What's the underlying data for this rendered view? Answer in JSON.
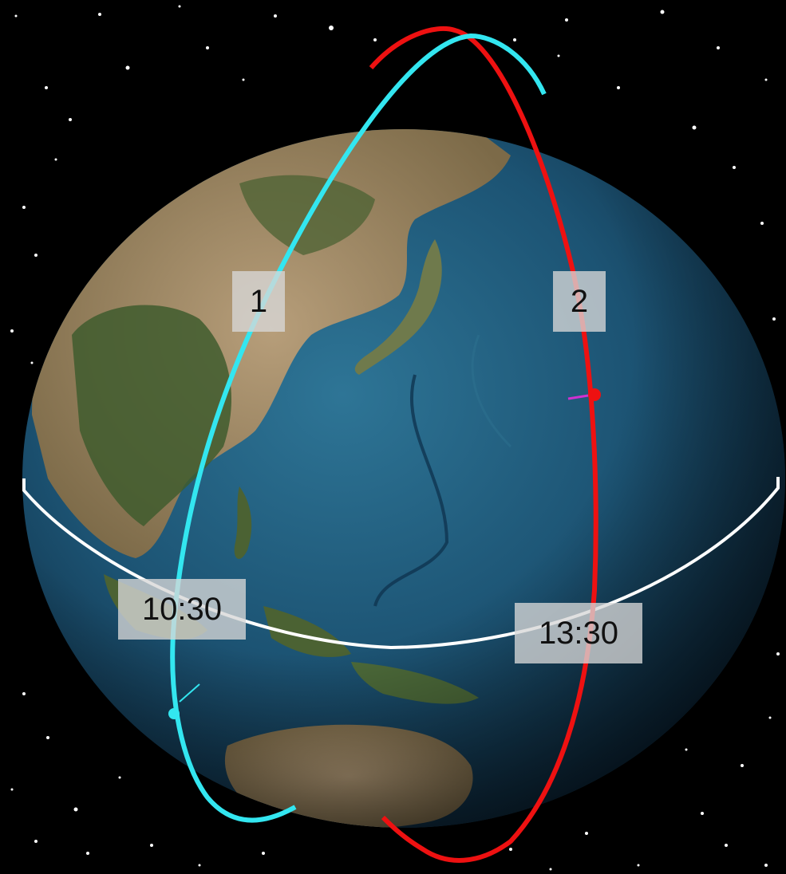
{
  "labels": {
    "orbit_1": "1",
    "orbit_2": "2",
    "crossing_1": "10:30",
    "crossing_2": "13:30"
  },
  "colors": {
    "background": "#000000",
    "orbit_1": "#33e6f0",
    "orbit_2": "#ee1111",
    "equator": "#ffffff",
    "ocean": "#1f5878",
    "land": "#8a7a55",
    "vegetation": "#3d5a2c",
    "label_box": "#d7d7d7"
  },
  "icons": {
    "satellite_1": "cyan-dot-icon",
    "satellite_2": "red-dot-icon"
  }
}
